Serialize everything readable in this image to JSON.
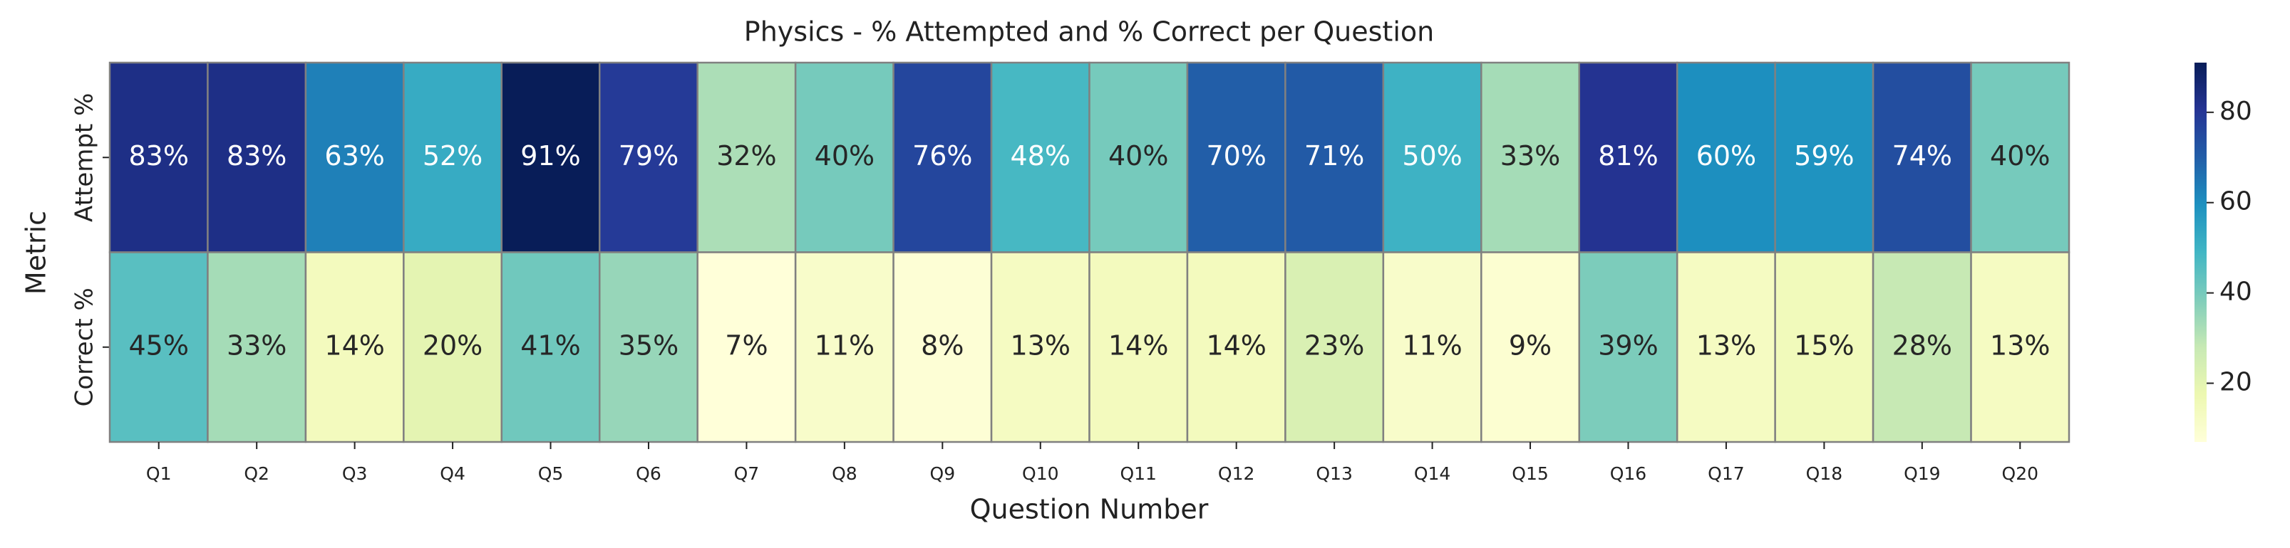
{
  "chart_data": {
    "type": "heatmap",
    "title": "Physics - % Attempted and % Correct per Question",
    "x_label": "Question Number",
    "y_label": "Metric",
    "categories": [
      "Q1",
      "Q2",
      "Q3",
      "Q4",
      "Q5",
      "Q6",
      "Q7",
      "Q8",
      "Q9",
      "Q10",
      "Q11",
      "Q12",
      "Q13",
      "Q14",
      "Q15",
      "Q16",
      "Q17",
      "Q18",
      "Q19",
      "Q20"
    ],
    "series": [
      {
        "name": "Attempt %",
        "values": [
          83,
          83,
          63,
          52,
          91,
          79,
          32,
          40,
          76,
          48,
          40,
          70,
          71,
          50,
          33,
          81,
          60,
          59,
          74,
          40
        ],
        "value_labels": [
          "83%",
          "83%",
          "63%",
          "52%",
          "91%",
          "79%",
          "32%",
          "40%",
          "76%",
          "48%",
          "40%",
          "70%",
          "71%",
          "50%",
          "33%",
          "81%",
          "60%",
          "59%",
          "74%",
          "40%"
        ]
      },
      {
        "name": "Correct %",
        "values": [
          45,
          33,
          14,
          20,
          41,
          35,
          7,
          11,
          8,
          13,
          14,
          14,
          23,
          11,
          9,
          39,
          13,
          15,
          28,
          13
        ],
        "value_labels": [
          "45%",
          "33%",
          "14%",
          "20%",
          "41%",
          "35%",
          "7%",
          "11%",
          "8%",
          "13%",
          "14%",
          "14%",
          "23%",
          "11%",
          "9%",
          "39%",
          "13%",
          "15%",
          "28%",
          "13%"
        ]
      }
    ],
    "colormap": "YlGnBu",
    "clim": [
      7,
      91
    ],
    "cticks": [
      20,
      40,
      60,
      80
    ]
  }
}
